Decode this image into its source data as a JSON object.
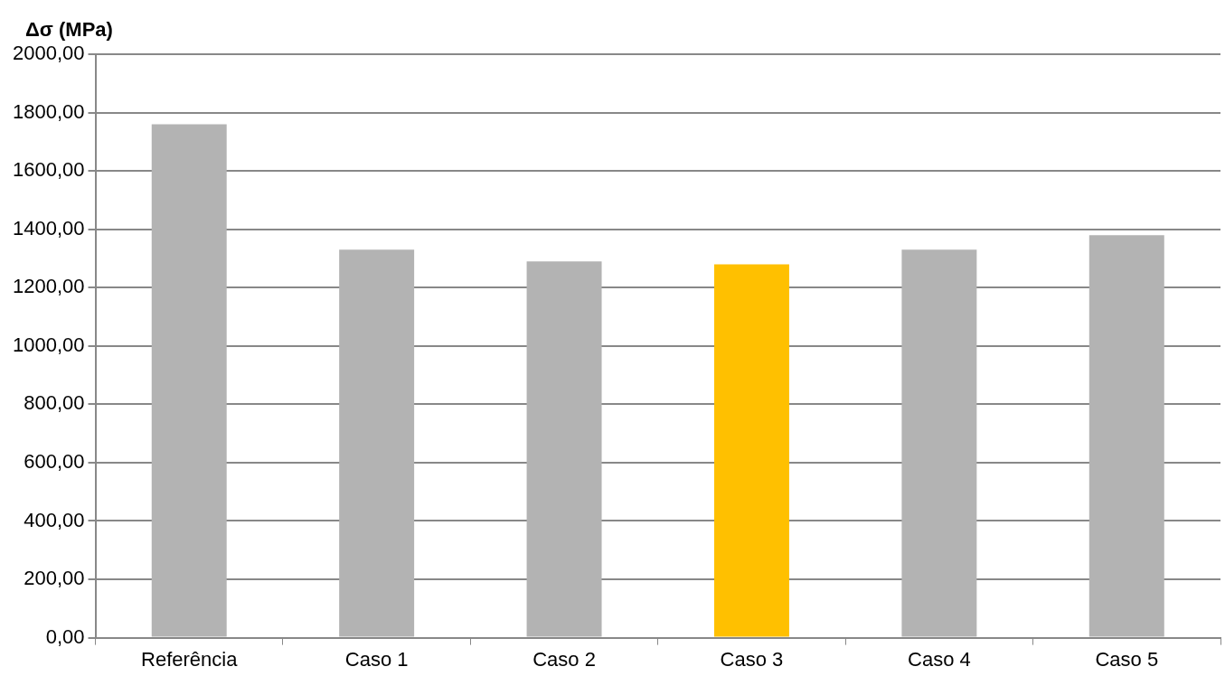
{
  "chart_data": {
    "type": "bar",
    "ylabel": "Δσ (MPa)",
    "categories": [
      "Referência",
      "Caso 1",
      "Caso 2",
      "Caso 3",
      "Caso 4",
      "Caso 5"
    ],
    "values": [
      1760,
      1330,
      1290,
      1280,
      1330,
      1380
    ],
    "colors": [
      "#b3b3b3",
      "#b3b3b3",
      "#b3b3b3",
      "#ffc000",
      "#b3b3b3",
      "#b3b3b3"
    ],
    "ylim": [
      0,
      2000
    ],
    "yticks": [
      {
        "value": 0,
        "label": "0,00"
      },
      {
        "value": 200,
        "label": "200,00"
      },
      {
        "value": 400,
        "label": "400,00"
      },
      {
        "value": 600,
        "label": "600,00"
      },
      {
        "value": 800,
        "label": "800,00"
      },
      {
        "value": 1000,
        "label": "1000,00"
      },
      {
        "value": 1200,
        "label": "1200,00"
      },
      {
        "value": 1400,
        "label": "1400,00"
      },
      {
        "value": 1600,
        "label": "1600,00"
      },
      {
        "value": 1800,
        "label": "1800,00"
      },
      {
        "value": 2000,
        "label": "2000,00"
      }
    ],
    "grid": "y",
    "legend": false
  }
}
